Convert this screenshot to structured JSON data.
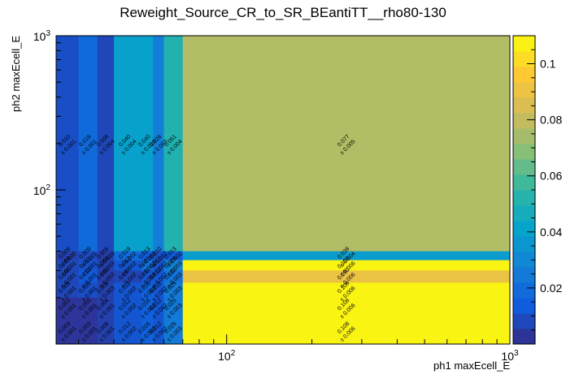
{
  "chart_data": {
    "type": "heatmap",
    "title": "Reweight_Source_CR_to_SR_BEantiTT__rho80-130",
    "xlabel": "ph1 maxEcell_E",
    "ylabel": "ph2 maxEcell_E",
    "x_scale": "log",
    "y_scale": "log",
    "xlim": [
      25,
      1000
    ],
    "ylim": [
      10,
      1000
    ],
    "x_ticks": [
      {
        "value": 100,
        "base": "10",
        "exp": "2"
      },
      {
        "value": 1000,
        "base": "10",
        "exp": "3"
      }
    ],
    "y_ticks": [
      {
        "value": 100,
        "base": "10",
        "exp": "2"
      },
      {
        "value": 1000,
        "base": "10",
        "exp": "3"
      }
    ],
    "x_edges": [
      25,
      30,
      35,
      40,
      50,
      55,
      60,
      70,
      1000
    ],
    "y_edges": [
      10,
      15,
      20,
      25,
      30,
      35,
      40,
      1000
    ],
    "colorbar": {
      "min": 0.0,
      "max": 0.11,
      "ticks": [
        "0.02",
        "0.04",
        "0.06",
        "0.08",
        "0.1"
      ],
      "tick_values": [
        0.02,
        0.04,
        0.06,
        0.08,
        0.1
      ],
      "palette": [
        "#352a87",
        "#0f5cdd",
        "#1481d6",
        "#06a4ca",
        "#2eb7a4",
        "#87bf77",
        "#d1bb59",
        "#fec832",
        "#f9fb0e"
      ]
    },
    "cells": [
      {
        "col": 0,
        "row": 6,
        "value": "0.010",
        "error": "0.001"
      },
      {
        "col": 1,
        "row": 6,
        "value": "0.019",
        "error": "0.001"
      },
      {
        "col": 2,
        "row": 6,
        "value": "0.008",
        "error": "0.004"
      },
      {
        "col": 3,
        "row": 6,
        "value": "0.040",
        "error": "0.004"
      },
      {
        "col": 4,
        "row": 6,
        "value": "0.040",
        "error": "0.010"
      },
      {
        "col": 5,
        "row": 6,
        "value": "0.026",
        "error": "0.003"
      },
      {
        "col": 6,
        "row": 6,
        "value": "0.051",
        "error": "0.004"
      },
      {
        "col": 7,
        "row": 6,
        "value": "0.077",
        "error": "0.005"
      },
      {
        "col": 0,
        "row": 5,
        "value": "0.006",
        "error": "0.000"
      },
      {
        "col": 1,
        "row": 5,
        "value": "0.009",
        "error": "0.001"
      },
      {
        "col": 2,
        "row": 5,
        "value": "0.005",
        "error": "0.003"
      },
      {
        "col": 3,
        "row": 5,
        "value": "0.019",
        "error": "0.002"
      },
      {
        "col": 4,
        "row": 5,
        "value": "0.013",
        "error": "0.002"
      },
      {
        "col": 5,
        "row": 5,
        "value": "0.010",
        "error": "0.002"
      },
      {
        "col": 6,
        "row": 5,
        "value": "0.013",
        "error": "0.002"
      },
      {
        "col": 7,
        "row": 5,
        "value": "0.038",
        "error": "0.004"
      },
      {
        "col": 0,
        "row": 4,
        "value": "0.008",
        "error": "0.001"
      },
      {
        "col": 1,
        "row": 4,
        "value": "0.011",
        "error": "0.001"
      },
      {
        "col": 2,
        "row": 4,
        "value": "0.006",
        "error": "0.003"
      },
      {
        "col": 3,
        "row": 4,
        "value": "0.012",
        "error": "0.002"
      },
      {
        "col": 4,
        "row": 4,
        "value": "0.021",
        "error": "0.002"
      },
      {
        "col": 5,
        "row": 4,
        "value": "0.011",
        "error": "0.003"
      },
      {
        "col": 6,
        "row": 4,
        "value": "0.028",
        "error": "0.003"
      },
      {
        "col": 7,
        "row": 4,
        "value": "0.108",
        "error": "0.006"
      },
      {
        "col": 0,
        "row": 3,
        "value": "0.008",
        "error": "0.001"
      },
      {
        "col": 1,
        "row": 3,
        "value": "0.013",
        "error": "0.001"
      },
      {
        "col": 2,
        "row": 3,
        "value": "0.005",
        "error": "0.003"
      },
      {
        "col": 3,
        "row": 3,
        "value": "0.007",
        "error": "0.002"
      },
      {
        "col": 4,
        "row": 3,
        "value": "0.011",
        "error": "0.002"
      },
      {
        "col": 5,
        "row": 3,
        "value": "0.012",
        "error": "0.002"
      },
      {
        "col": 6,
        "row": 3,
        "value": "0.022",
        "error": "0.003"
      },
      {
        "col": 7,
        "row": 3,
        "value": "0.090",
        "error": "0.006"
      },
      {
        "col": 0,
        "row": 2,
        "value": "0.008",
        "error": "0.001"
      },
      {
        "col": 1,
        "row": 2,
        "value": "0.010",
        "error": "0.001"
      },
      {
        "col": 2,
        "row": 2,
        "value": "0.006",
        "error": "0.003"
      },
      {
        "col": 3,
        "row": 2,
        "value": "0.012",
        "error": "0.002"
      },
      {
        "col": 4,
        "row": 2,
        "value": "0.016",
        "error": "0.002"
      },
      {
        "col": 5,
        "row": 2,
        "value": "0.012",
        "error": "0.002"
      },
      {
        "col": 6,
        "row": 2,
        "value": "0.025",
        "error": "0.003"
      },
      {
        "col": 7,
        "row": 2,
        "value": "0.108",
        "error": "0.006"
      },
      {
        "col": 0,
        "row": 1,
        "value": "0.003",
        "error": "0.001"
      },
      {
        "col": 1,
        "row": 1,
        "value": "0.003",
        "error": "0.001"
      },
      {
        "col": 2,
        "row": 1,
        "value": "0.006",
        "error": "0.001"
      },
      {
        "col": 3,
        "row": 1,
        "value": "0.012",
        "error": "0.002"
      },
      {
        "col": 4,
        "row": 1,
        "value": "0.016",
        "error": "0.002"
      },
      {
        "col": 5,
        "row": 1,
        "value": "0.012",
        "error": "0.002"
      },
      {
        "col": 6,
        "row": 1,
        "value": "0.025",
        "error": "0.003"
      },
      {
        "col": 7,
        "row": 1,
        "value": "0.108",
        "error": "0.006"
      },
      {
        "col": 0,
        "row": 0,
        "value": "0.003",
        "error": "0.001"
      },
      {
        "col": 1,
        "row": 0,
        "value": "0.003",
        "error": "0.001"
      },
      {
        "col": 2,
        "row": 0,
        "value": "0.006",
        "error": "0.001"
      },
      {
        "col": 3,
        "row": 0,
        "value": "0.012",
        "error": "0.002"
      },
      {
        "col": 4,
        "row": 0,
        "value": "0.016",
        "error": "0.002"
      },
      {
        "col": 5,
        "row": 0,
        "value": "0.012",
        "error": "0.002"
      },
      {
        "col": 6,
        "row": 0,
        "value": "0.025",
        "error": "0.003"
      },
      {
        "col": 7,
        "row": 0,
        "value": "0.108",
        "error": "0.006"
      }
    ]
  }
}
